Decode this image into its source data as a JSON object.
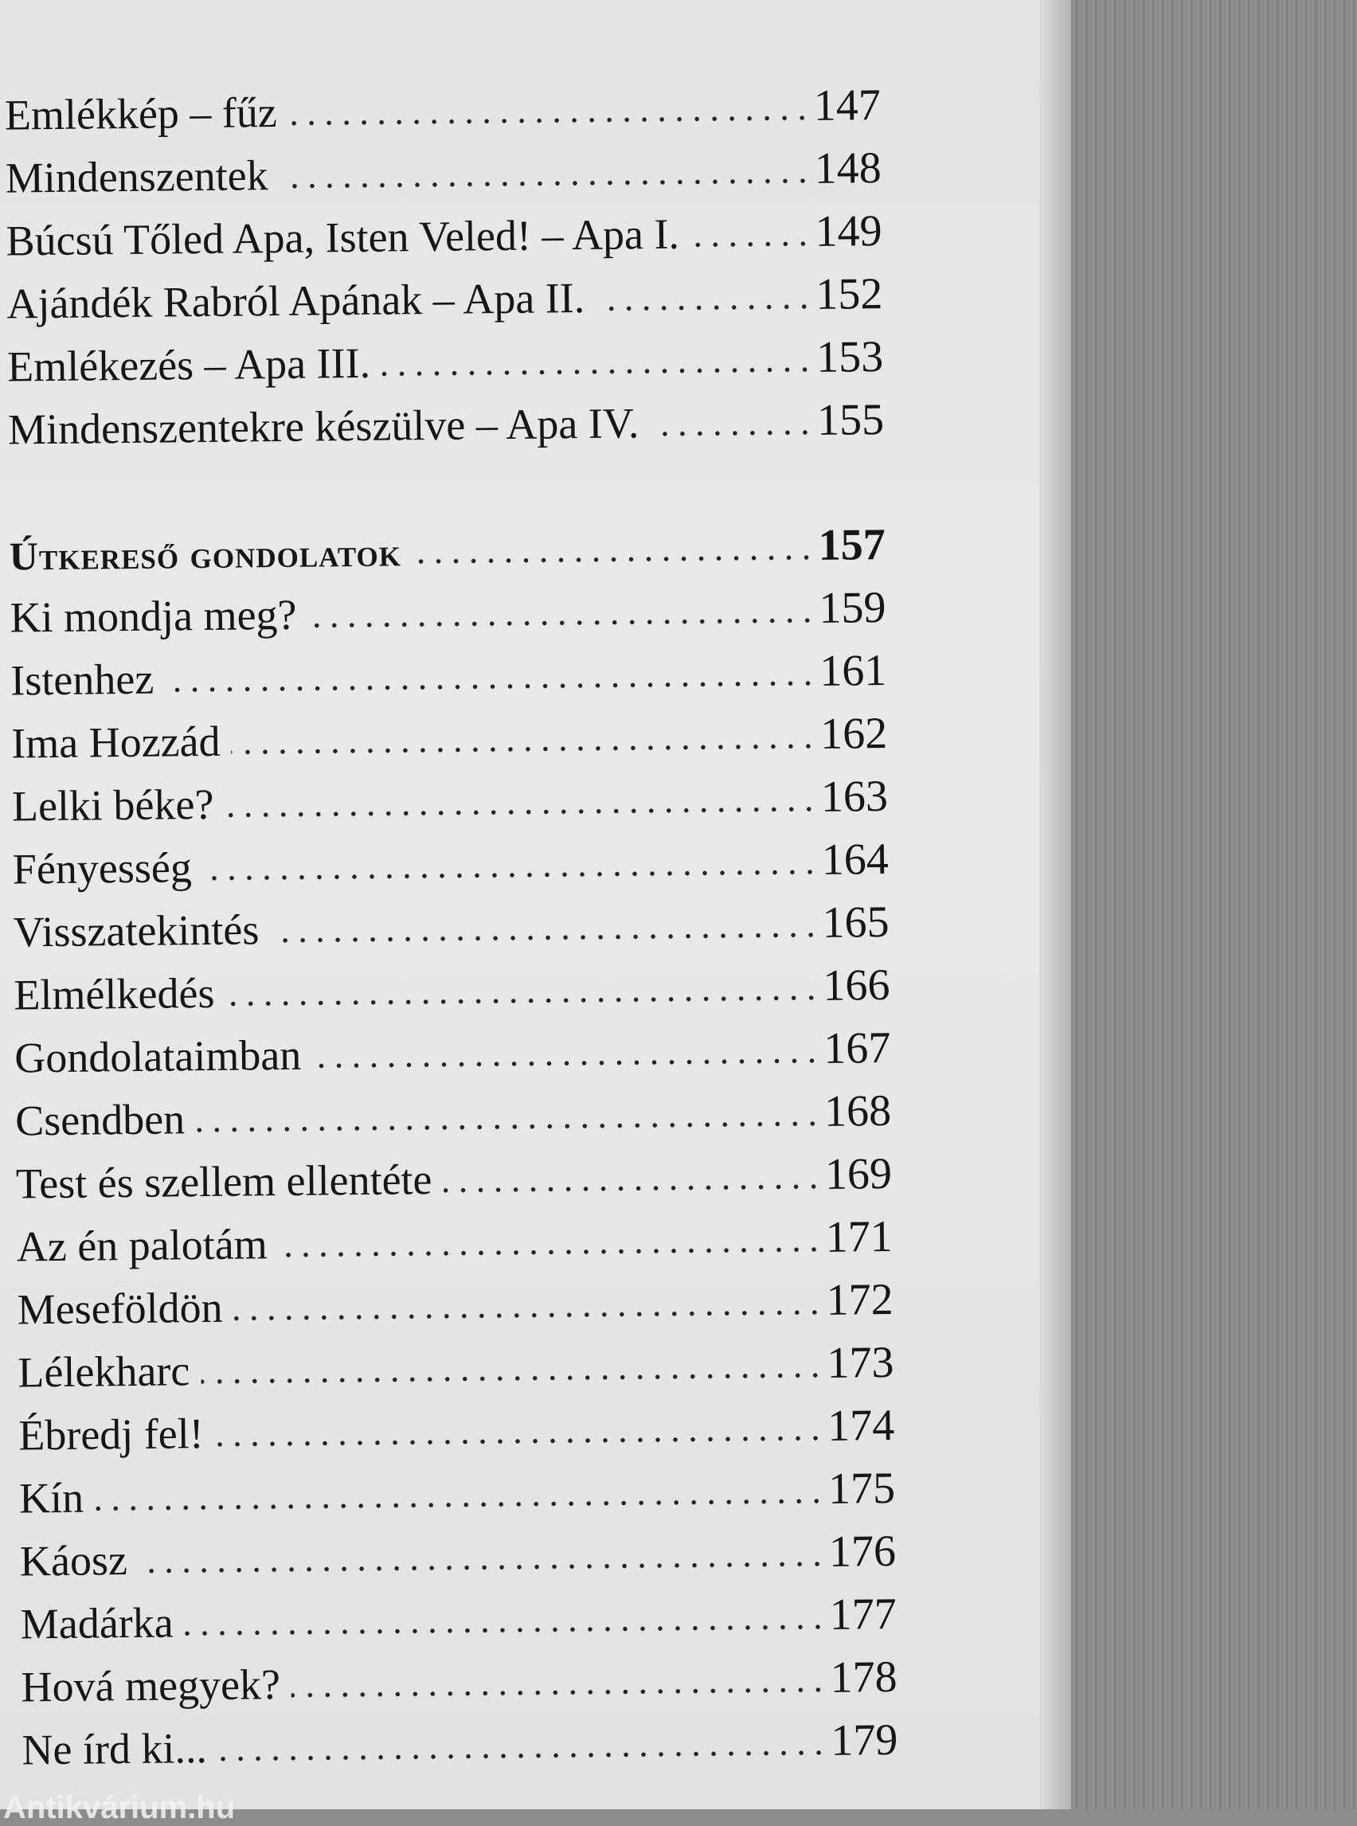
{
  "toc": {
    "entries": [
      {
        "title": "Emlékkép – fűz",
        "page": "147"
      },
      {
        "title": "Mindenszentek",
        "page": "148"
      },
      {
        "title": "Búcsú Tőled Apa, Isten Veled! – Apa I.",
        "page": "149"
      },
      {
        "title": "Ajándék Rabról Apának – Apa II.",
        "page": "152"
      },
      {
        "title": "Emlékezés – Apa III.",
        "page": "153"
      },
      {
        "title": "Mindenszentekre készülve – Apa IV.",
        "page": "155"
      }
    ],
    "section": {
      "title": "Útkereső gondolatok",
      "page": "157"
    },
    "section_entries": [
      {
        "title": "Ki mondja meg?",
        "page": "159"
      },
      {
        "title": "Istenhez",
        "page": "161"
      },
      {
        "title": "Ima Hozzád",
        "page": "162"
      },
      {
        "title": "Lelki béke?",
        "page": "163"
      },
      {
        "title": "Fényesség",
        "page": "164"
      },
      {
        "title": "Visszatekintés",
        "page": "165"
      },
      {
        "title": "Elmélkedés",
        "page": "166"
      },
      {
        "title": "Gondolataimban",
        "page": "167"
      },
      {
        "title": "Csendben",
        "page": "168"
      },
      {
        "title": "Test és szellem ellentéte",
        "page": "169"
      },
      {
        "title": "Az én palotám",
        "page": "171"
      },
      {
        "title": "Meseföldön",
        "page": "172"
      },
      {
        "title": "Lélekharc",
        "page": "173"
      },
      {
        "title": "Ébredj fel!",
        "page": "174"
      },
      {
        "title": "Kín",
        "page": "175"
      },
      {
        "title": "Káosz",
        "page": "176"
      },
      {
        "title": "Madárka",
        "page": "177"
      },
      {
        "title": "Hová megyek?",
        "page": "178"
      },
      {
        "title": "Ne írd ki...",
        "page": "179"
      }
    ]
  },
  "watermark": "Antikvárium.hu"
}
